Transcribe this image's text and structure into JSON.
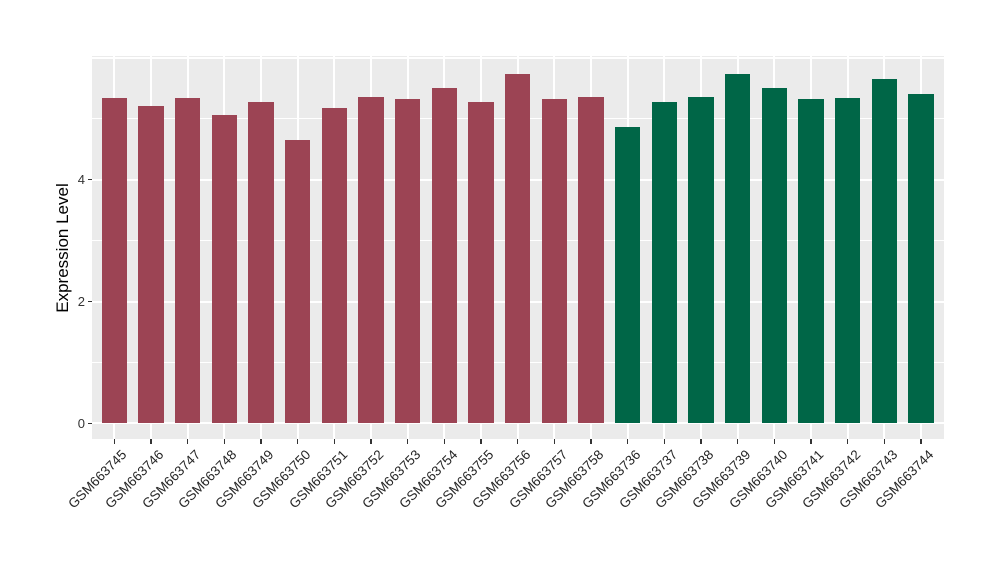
{
  "figure": {
    "background_color": "#FFFFFF",
    "panel_background_color": "#EBEBEB",
    "gridline_color": "#FFFFFF",
    "tick_color": "#333333",
    "axis_text_color": "#333333",
    "x_label_color": "#262626"
  },
  "chart_data": {
    "type": "bar",
    "title": "",
    "xlabel": "",
    "ylabel": "Expression Level",
    "ylim": [
      0,
      6.02
    ],
    "y_major_ticks": [
      0,
      2,
      4
    ],
    "y_major_gridlines": [
      0,
      2,
      4,
      6
    ],
    "y_minor_gridlines": [
      1,
      3,
      5
    ],
    "grid": "on",
    "legend": "none",
    "bar_orientation": "vertical",
    "x_tick_label_rotation_deg": 45,
    "groups": [
      {
        "color": "#9C4454",
        "categories": [
          "GSM663745",
          "GSM663746",
          "GSM663747",
          "GSM663748",
          "GSM663749",
          "GSM663750",
          "GSM663751",
          "GSM663752",
          "GSM663753",
          "GSM663754",
          "GSM663755",
          "GSM663756",
          "GSM663757",
          "GSM663758"
        ],
        "values": [
          5.34,
          5.21,
          5.34,
          5.06,
          5.28,
          4.65,
          5.18,
          5.35,
          5.33,
          5.5,
          5.27,
          5.73,
          5.32,
          5.35
        ]
      },
      {
        "color": "#006647",
        "categories": [
          "GSM663736",
          "GSM663737",
          "GSM663738",
          "GSM663739",
          "GSM663740",
          "GSM663741",
          "GSM663742",
          "GSM663743",
          "GSM663744"
        ],
        "values": [
          4.87,
          5.27,
          5.35,
          5.74,
          5.5,
          5.33,
          5.34,
          5.65,
          5.41
        ]
      }
    ]
  }
}
